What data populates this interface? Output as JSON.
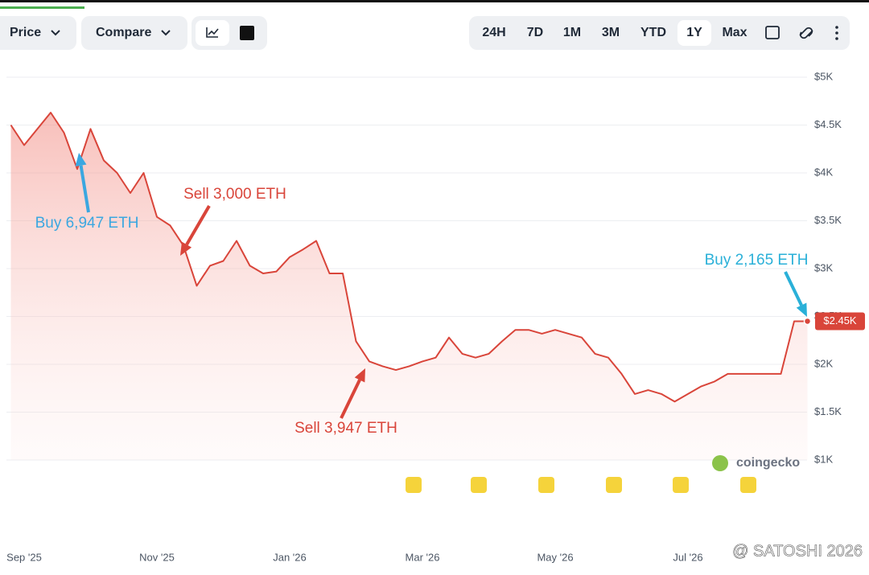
{
  "toolbar": {
    "price": "Price",
    "compare": "Compare",
    "ranges": [
      "24H",
      "7D",
      "1M",
      "3M",
      "YTD",
      "1Y",
      "Max"
    ],
    "active_range": "1Y"
  },
  "chart_data": {
    "type": "line",
    "categories": [
      null,
      "Sep '25",
      null,
      null,
      null,
      null,
      null,
      null,
      null,
      null,
      null,
      "Nov '25",
      null,
      null,
      null,
      null,
      null,
      null,
      null,
      null,
      null,
      "Jan '26",
      null,
      null,
      null,
      null,
      null,
      null,
      null,
      null,
      null,
      "Mar '26",
      null,
      null,
      null,
      null,
      null,
      null,
      null,
      null,
      null,
      "May '26",
      null,
      null,
      null,
      null,
      null,
      null,
      null,
      null,
      null,
      "Jul '26",
      null,
      null,
      null,
      null,
      null,
      null,
      null,
      null,
      null
    ],
    "values": [
      4500,
      4290,
      4460,
      4630,
      4420,
      4040,
      4460,
      4130,
      4000,
      3790,
      4000,
      3540,
      3450,
      3240,
      2820,
      3030,
      3080,
      3290,
      3030,
      2950,
      2970,
      3120,
      3200,
      3290,
      2950,
      2950,
      2240,
      2030,
      1980,
      1940,
      1980,
      2030,
      2070,
      2280,
      2110,
      2070,
      2110,
      2240,
      2360,
      2360,
      2320,
      2360,
      2320,
      2280,
      2110,
      2070,
      1900,
      1690,
      1730,
      1690,
      1610,
      1690,
      1770,
      1820,
      1900,
      1900,
      1900,
      1900,
      1900,
      2450,
      2450
    ],
    "color": "#d9453a",
    "ylim": [
      1000,
      5000
    ],
    "yticks": [
      {
        "value": 1000,
        "label": "$1K"
      },
      {
        "value": 1500,
        "label": "$1.5K"
      },
      {
        "value": 2000,
        "label": "$2K"
      },
      {
        "value": 2500,
        "label": "$2.5K"
      },
      {
        "value": 3000,
        "label": "$3K"
      },
      {
        "value": 3500,
        "label": "$3.5K"
      },
      {
        "value": 4000,
        "label": "$4K"
      },
      {
        "value": 4500,
        "label": "$4.5K"
      },
      {
        "value": 5000,
        "label": "$5K"
      }
    ],
    "grid": true,
    "current_price_label": "$2.45K",
    "annotations": [
      {
        "text": "Buy 6,947 ETH",
        "color": "#3ba7e0"
      },
      {
        "text": "Sell 3,000 ETH",
        "color": "#d9453a"
      },
      {
        "text": "Sell 3,947 ETH",
        "color": "#d9453a"
      },
      {
        "text": "Buy 2,165 ETH",
        "color": "#2ab0d8"
      }
    ],
    "watermark": "coingecko",
    "credit": "@ SATOSHI 2026"
  }
}
